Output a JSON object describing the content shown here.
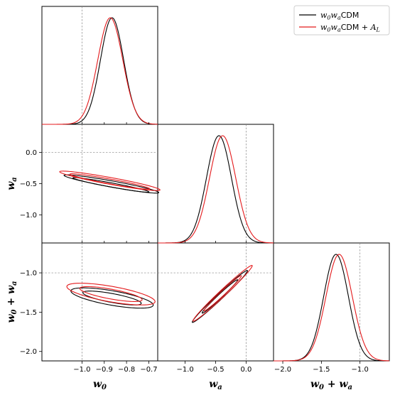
{
  "chart_data": {
    "type": "corner-plot",
    "parameters": [
      "w_0",
      "w_a",
      "w_0 + w_a"
    ],
    "axis_labels": {
      "w0": {
        "base": "w",
        "sub": "0"
      },
      "wa": {
        "base": "w",
        "sub": "a"
      },
      "sum": {
        "base1": "w",
        "sub1": "0",
        "plus": " + ",
        "base2": "w",
        "sub2": "a"
      }
    },
    "ranges": {
      "w0": [
        -1.18,
        -0.66
      ],
      "wa": [
        -1.45,
        0.45
      ],
      "sum": [
        -2.12,
        -0.62
      ]
    },
    "ticks": {
      "w0": [
        -1.0,
        -0.9,
        -0.8,
        -0.7
      ],
      "wa": [
        0.0,
        -0.5,
        -1.0
      ],
      "wa_x": [
        -1.0,
        -0.5,
        0.0
      ],
      "sum": [
        -1.0,
        -1.5,
        -2.0
      ],
      "sum_x": [
        -2.0,
        -1.5,
        -1.0
      ]
    },
    "tick_labels": {
      "w0": [
        "−1.0",
        "−0.9",
        "−0.8",
        "−0.7"
      ],
      "wa": [
        "0.0",
        "−0.5",
        "−1.0"
      ],
      "wa_x": [
        "−1.0",
        "−0.5",
        "0.0"
      ],
      "sum": [
        "−1.0",
        "−1.5",
        "−2.0"
      ],
      "sum_x": [
        "−2.0",
        "−1.5",
        "−1.0"
      ]
    },
    "reference": {
      "w0": -1.0,
      "wa": 0.0,
      "sum": -1.0
    },
    "series": [
      {
        "name_parts": {
          "base1": "w",
          "sub1": "0",
          "base2": "w",
          "sub2": "a",
          "tail": "CDM",
          "extra": ""
        },
        "color": "#000000",
        "marginals": {
          "w0": {
            "mean": -0.865,
            "sd": 0.052
          },
          "wa": {
            "mean": -0.445,
            "sd": 0.205
          },
          "sum": {
            "mean": -1.31,
            "sd": 0.16
          }
        },
        "w0_wa": {
          "ellipses": [
            {
              "center": [
                -0.87,
                -0.52
              ],
              "a": 0.205,
              "b": 0.028,
              "angle_deg": -34
            },
            {
              "center": [
                -0.868,
                -0.505
              ],
              "a": 0.255,
              "b": 0.042,
              "angle_deg": -34
            }
          ]
        },
        "w0_sum": {
          "ellipses": [
            {
              "center": [
                -0.865,
                -1.32
              ],
              "a": 0.15,
              "b": 0.05,
              "angle_deg": -31
            },
            {
              "center": [
                -0.865,
                -1.32
              ],
              "a": 0.21,
              "b": 0.082,
              "angle_deg": -31
            }
          ]
        },
        "wa_sum": {
          "ellipses": [
            {
              "center": [
                -0.43,
                -1.3
              ],
              "a": 0.36,
              "b": 0.028,
              "angle_deg": 36
            },
            {
              "center": [
                -0.43,
                -1.3
              ],
              "a": 0.56,
              "b": 0.042,
              "angle_deg": 36
            }
          ]
        }
      },
      {
        "name_parts": {
          "base1": "w",
          "sub1": "0",
          "base2": "w",
          "sub2": "a",
          "tail": "CDM + ",
          "extra": "A",
          "extra_sub": "L"
        },
        "color": "#e41a1c",
        "marginals": {
          "w0": {
            "mean": -0.873,
            "sd": 0.056
          },
          "wa": {
            "mean": -0.385,
            "sd": 0.215
          },
          "sum": {
            "mean": -1.27,
            "sd": 0.17
          }
        },
        "w0_wa": {
          "ellipses": [
            {
              "center": [
                -0.875,
                -0.465
              ],
              "a": 0.215,
              "b": 0.032,
              "angle_deg": -34
            },
            {
              "center": [
                -0.875,
                -0.455
              ],
              "a": 0.27,
              "b": 0.046,
              "angle_deg": -34
            }
          ]
        },
        "w0_sum": {
          "ellipses": [
            {
              "center": [
                -0.87,
                -1.27
              ],
              "a": 0.16,
              "b": 0.055,
              "angle_deg": -31
            },
            {
              "center": [
                -0.87,
                -1.27
              ],
              "a": 0.225,
              "b": 0.088,
              "angle_deg": -31
            }
          ]
        },
        "wa_sum": {
          "ellipses": [
            {
              "center": [
                -0.385,
                -1.26
              ],
              "a": 0.38,
              "b": 0.03,
              "angle_deg": 36
            },
            {
              "center": [
                -0.385,
                -1.26
              ],
              "a": 0.6,
              "b": 0.046,
              "angle_deg": 36
            }
          ]
        }
      }
    ],
    "grid": false,
    "legend_position": "top-right"
  }
}
